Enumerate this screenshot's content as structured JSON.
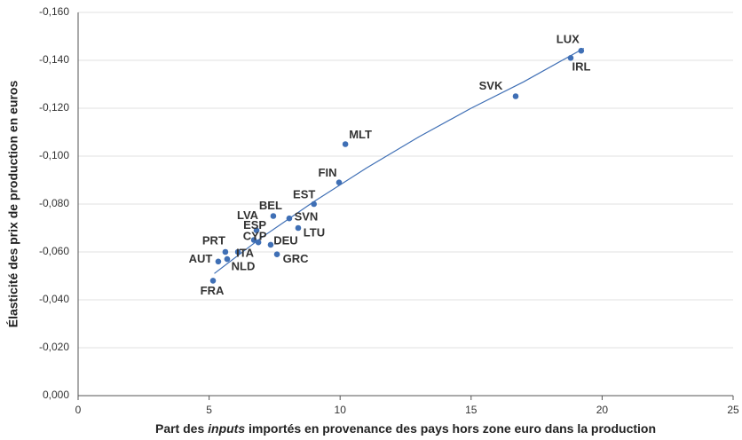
{
  "chart_data": {
    "type": "scatter",
    "x_label_parts": [
      "Part des ",
      "inputs",
      " importés en provenance des pays hors zone euro dans la production"
    ],
    "y_label": "Élasticité des prix de production en euros",
    "xlim": [
      0,
      25
    ],
    "xticks": [
      0,
      5,
      10,
      15,
      20,
      25
    ],
    "ylim": [
      0,
      -0.16
    ],
    "yticks": [
      {
        "value": 0,
        "label": "0,000"
      },
      {
        "value": -0.02,
        "label": "-0,020"
      },
      {
        "value": -0.04,
        "label": "-0,040"
      },
      {
        "value": -0.06,
        "label": "-0,060"
      },
      {
        "value": -0.08,
        "label": "-0,080"
      },
      {
        "value": -0.1,
        "label": "-0,100"
      },
      {
        "value": -0.12,
        "label": "-0,120"
      },
      {
        "value": -0.14,
        "label": "-0,140"
      },
      {
        "value": -0.16,
        "label": "-0,160"
      }
    ],
    "grid": true,
    "series": [
      {
        "color": "#3f6fb5",
        "labels": [
          "LUX",
          "IRL",
          "SVK",
          "MLT",
          "FIN",
          "EST",
          "BEL",
          "SVN",
          "LVA",
          "ESP",
          "CYP",
          "ITA",
          "DEU",
          "LTU",
          "GRC",
          "PRT",
          "AUT",
          "NLD",
          "FRA"
        ],
        "x": [
          19.2,
          18.8,
          16.7,
          10.2,
          9.96,
          9.0,
          7.45,
          8.06,
          6.81,
          6.71,
          6.88,
          6.1,
          7.35,
          8.4,
          7.59,
          5.62,
          5.35,
          5.69,
          5.15
        ],
        "values": [
          -0.144,
          -0.141,
          -0.125,
          -0.105,
          -0.089,
          -0.08,
          -0.075,
          -0.074,
          -0.069,
          -0.065,
          -0.064,
          -0.06,
          -0.063,
          -0.07,
          -0.059,
          -0.06,
          -0.056,
          -0.057,
          -0.048
        ]
      }
    ],
    "trend": {
      "color": "#3f6fb5",
      "x": [
        5.2,
        7,
        9,
        11,
        13,
        15,
        17,
        19.3
      ],
      "values": [
        -0.051,
        -0.066,
        -0.081,
        -0.095,
        -0.108,
        -0.12,
        -0.131,
        -0.145
      ]
    }
  }
}
